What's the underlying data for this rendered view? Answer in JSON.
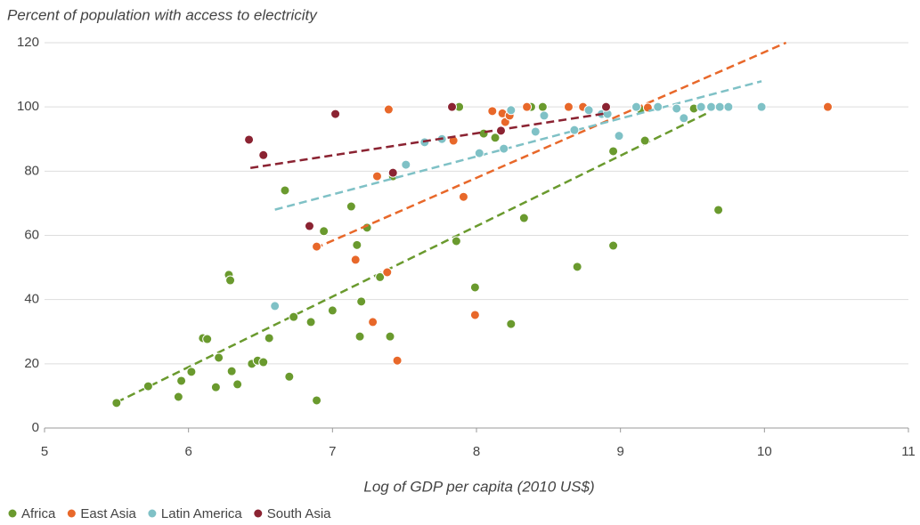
{
  "chart_data": {
    "type": "scatter",
    "title": "Percent of population with access to electricity",
    "x_label": "Log of GDP per capita (2010 US$)",
    "xlim": [
      5,
      11
    ],
    "xticks": [
      5,
      6,
      7,
      8,
      9,
      10,
      11
    ],
    "ylim": [
      0,
      120
    ],
    "yticks": [
      0,
      20,
      40,
      60,
      80,
      100,
      120
    ],
    "grid": true,
    "legend": "bottom-left",
    "series": [
      {
        "name": "Africa",
        "color": "#6a9a2e",
        "x": [
          5.5,
          5.72,
          5.93,
          5.95,
          6.02,
          6.1,
          6.13,
          6.19,
          6.21,
          6.28,
          6.29,
          6.3,
          6.34,
          6.44,
          6.48,
          6.52,
          6.56,
          6.67,
          6.7,
          6.73,
          6.85,
          6.89,
          6.94,
          7.0,
          7.13,
          7.17,
          7.19,
          7.2,
          7.24,
          7.33,
          7.4,
          7.42,
          7.86,
          7.88,
          7.99,
          8.05,
          8.13,
          8.24,
          8.33,
          8.38,
          8.46,
          8.7,
          8.95,
          8.95,
          9.14,
          9.17,
          9.51,
          9.68
        ],
        "values": [
          7.8,
          13,
          9.7,
          14.7,
          17.5,
          28,
          27.7,
          12.7,
          21.9,
          47.7,
          46,
          17.7,
          13.6,
          20,
          21,
          20.5,
          28,
          74,
          16,
          34.6,
          33,
          8.6,
          61.3,
          36.6,
          69,
          57,
          28.5,
          39.4,
          62.4,
          47,
          28.5,
          78.4,
          58.2,
          100,
          43.8,
          91.7,
          90.4,
          32.4,
          65.4,
          100,
          100,
          50.2,
          56.8,
          86.2,
          99.2,
          89.5,
          99.5,
          67.9
        ],
        "trendline": {
          "x": [
            5.5,
            9.6
          ],
          "y": [
            8,
            98
          ]
        }
      },
      {
        "name": "East Asia",
        "color": "#e8682a",
        "x": [
          6.89,
          7.16,
          7.28,
          7.31,
          7.38,
          7.39,
          7.45,
          7.84,
          7.91,
          7.99,
          8.11,
          8.18,
          8.2,
          8.23,
          8.35,
          8.64,
          8.74,
          9.19,
          10.44
        ],
        "values": [
          56.5,
          52.4,
          33,
          78.4,
          48.5,
          99.2,
          21,
          89.5,
          72,
          35.2,
          98.7,
          98,
          95.3,
          97.3,
          100,
          100,
          100,
          99.8,
          100
        ],
        "trendline": {
          "x": [
            6.88,
            10.15
          ],
          "y": [
            56,
            120
          ]
        }
      },
      {
        "name": "Latin America",
        "color": "#7fc1c6",
        "x": [
          6.6,
          7.51,
          7.64,
          7.76,
          8.02,
          8.19,
          8.24,
          8.41,
          8.47,
          8.68,
          8.78,
          8.87,
          8.91,
          8.99,
          9.11,
          9.26,
          9.39,
          9.44,
          9.56,
          9.63,
          9.69,
          9.75,
          9.98
        ],
        "values": [
          38,
          82,
          89,
          90,
          85.6,
          87,
          99,
          92.3,
          97.3,
          92.8,
          99,
          97.8,
          97.8,
          91,
          100,
          100,
          99.5,
          96.5,
          100,
          100,
          100,
          100,
          100
        ],
        "trendline": {
          "x": [
            6.6,
            9.98
          ],
          "y": [
            68,
            108
          ]
        }
      },
      {
        "name": "South Asia",
        "color": "#8b2332",
        "x": [
          6.42,
          6.52,
          6.84,
          7.02,
          7.42,
          7.83,
          8.17,
          8.9
        ],
        "values": [
          89.8,
          85,
          62.9,
          97.8,
          79.5,
          100,
          92.6,
          100
        ],
        "trendline": {
          "x": [
            6.43,
            8.9
          ],
          "y": [
            81,
            98
          ]
        }
      }
    ]
  }
}
